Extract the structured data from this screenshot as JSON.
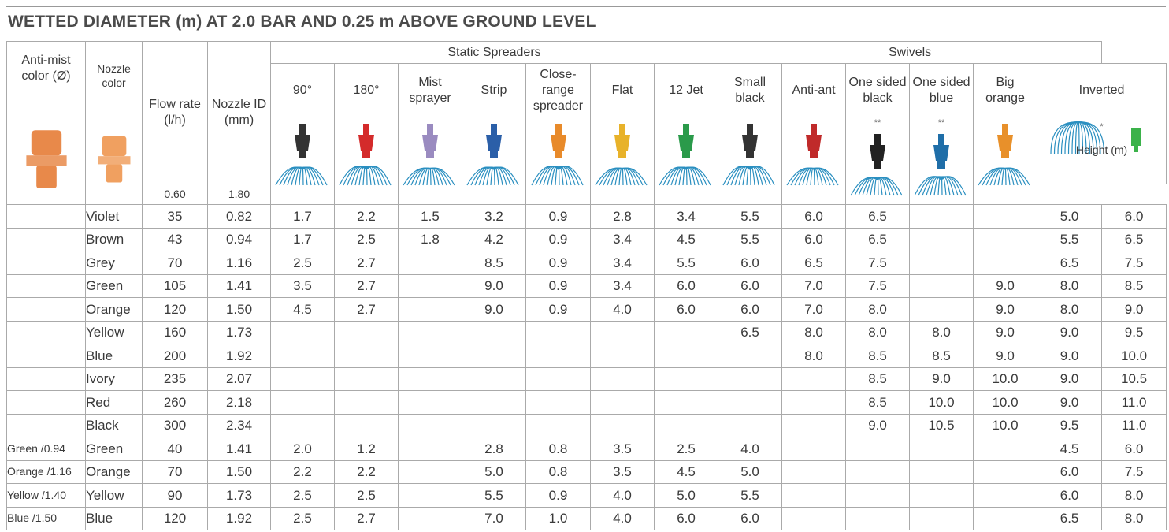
{
  "title": "WETTED DIAMETER (m) AT 2.0 BAR AND 0.25 m ABOVE GROUND LEVEL",
  "table": {
    "groups": [
      "Static Spreaders",
      "Swivels"
    ],
    "columns": [
      {
        "label": "Anti-mist color (Ø)"
      },
      {
        "label": "Nozzle color"
      },
      {
        "label": "Flow rate (l/h)"
      },
      {
        "label": "Nozzle ID (mm)"
      },
      {
        "label": "90°"
      },
      {
        "label": "180°"
      },
      {
        "label": "Mist sprayer"
      },
      {
        "label": "Strip"
      },
      {
        "label": "Close-range spreader"
      },
      {
        "label": "Flat"
      },
      {
        "label": "12 Jet"
      },
      {
        "label": "Small black"
      },
      {
        "label": "Anti-ant"
      },
      {
        "label": "One sided black",
        "note": "**"
      },
      {
        "label": "One sided blue",
        "note": "**"
      },
      {
        "label": "Big orange"
      },
      {
        "label": "Inverted",
        "note": "*"
      }
    ],
    "height_label": "Height (m)",
    "heights": [
      "0.60",
      "1.80"
    ],
    "rows": [
      [
        null,
        "Violet",
        "35",
        "0.82",
        "1.7",
        "2.2",
        "1.5",
        "3.2",
        "0.9",
        "2.8",
        "3.4",
        "5.5",
        "6.0",
        "6.5",
        null,
        null,
        "5.0",
        "6.0"
      ],
      [
        null,
        "Brown",
        "43",
        "0.94",
        "1.7",
        "2.5",
        "1.8",
        "4.2",
        "0.9",
        "3.4",
        "4.5",
        "5.5",
        "6.0",
        "6.5",
        null,
        null,
        "5.5",
        "6.5"
      ],
      [
        null,
        "Grey",
        "70",
        "1.16",
        "2.5",
        "2.7",
        null,
        "8.5",
        "0.9",
        "3.4",
        "5.5",
        "6.0",
        "6.5",
        "7.5",
        null,
        null,
        "6.5",
        "7.5"
      ],
      [
        null,
        "Green",
        "105",
        "1.41",
        "3.5",
        "2.7",
        null,
        "9.0",
        "0.9",
        "3.4",
        "6.0",
        "6.0",
        "7.0",
        "7.5",
        null,
        "9.0",
        "8.0",
        "8.5"
      ],
      [
        null,
        "Orange",
        "120",
        "1.50",
        "4.5",
        "2.7",
        null,
        "9.0",
        "0.9",
        "4.0",
        "6.0",
        "6.0",
        "7.0",
        "8.0",
        null,
        "9.0",
        "8.0",
        "9.0"
      ],
      [
        null,
        "Yellow",
        "160",
        "1.73",
        null,
        null,
        null,
        null,
        null,
        null,
        null,
        "6.5",
        "8.0",
        "8.0",
        "8.0",
        "9.0",
        "9.0",
        "9.5"
      ],
      [
        null,
        "Blue",
        "200",
        "1.92",
        null,
        null,
        null,
        null,
        null,
        null,
        null,
        null,
        "8.0",
        "8.5",
        "8.5",
        "9.0",
        "9.0",
        "10.0"
      ],
      [
        null,
        "Ivory",
        "235",
        "2.07",
        null,
        null,
        null,
        null,
        null,
        null,
        null,
        null,
        null,
        "8.5",
        "9.0",
        "10.0",
        "9.0",
        "10.5"
      ],
      [
        null,
        "Red",
        "260",
        "2.18",
        null,
        null,
        null,
        null,
        null,
        null,
        null,
        null,
        null,
        "8.5",
        "10.0",
        "10.0",
        "9.0",
        "11.0"
      ],
      [
        null,
        "Black",
        "300",
        "2.34",
        null,
        null,
        null,
        null,
        null,
        null,
        null,
        null,
        null,
        "9.0",
        "10.5",
        "10.0",
        "9.5",
        "11.0"
      ],
      [
        "Green /0.94",
        "Green",
        "40",
        "1.41",
        "2.0",
        "1.2",
        null,
        "2.8",
        "0.8",
        "3.5",
        "2.5",
        "4.0",
        null,
        null,
        null,
        null,
        "4.5",
        "6.0"
      ],
      [
        "Orange /1.16",
        "Orange",
        "70",
        "1.50",
        "2.2",
        "2.2",
        null,
        "5.0",
        "0.8",
        "3.5",
        "4.5",
        "5.0",
        null,
        null,
        null,
        null,
        "6.0",
        "7.5"
      ],
      [
        "Yellow /1.40",
        "Yellow",
        "90",
        "1.73",
        "2.5",
        "2.5",
        null,
        "5.5",
        "0.9",
        "4.0",
        "5.0",
        "5.5",
        null,
        null,
        null,
        null,
        "6.0",
        "8.0"
      ],
      [
        "Blue /1.50",
        "Blue",
        "120",
        "1.92",
        "2.5",
        "2.7",
        null,
        "7.0",
        "1.0",
        "4.0",
        "6.0",
        "6.0",
        null,
        null,
        null,
        null,
        "6.5",
        "8.0"
      ]
    ]
  }
}
